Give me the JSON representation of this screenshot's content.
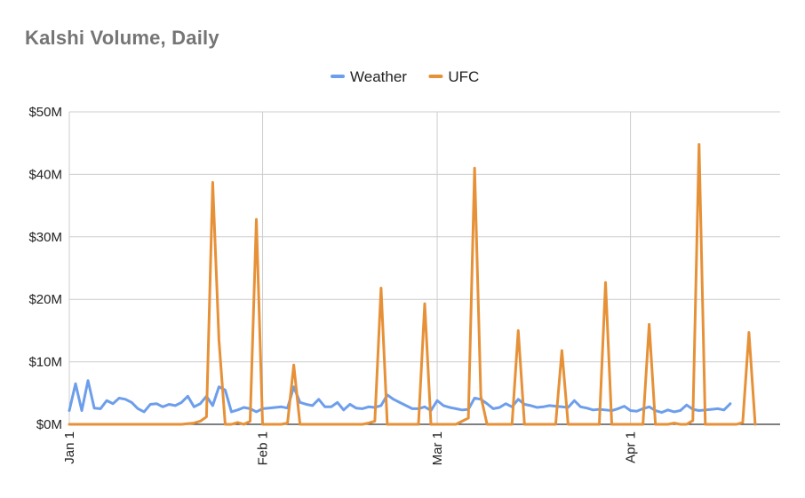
{
  "chart_data": {
    "type": "line",
    "title": "Kalshi Volume, Daily",
    "xlabel": "",
    "ylabel": "",
    "ylim": [
      0,
      50
    ],
    "y_ticks": [
      {
        "value": 0,
        "label": "$0M"
      },
      {
        "value": 10,
        "label": "$10M"
      },
      {
        "value": 20,
        "label": "$20M"
      },
      {
        "value": 30,
        "label": "$30M"
      },
      {
        "value": 40,
        "label": "$40M"
      },
      {
        "value": 50,
        "label": "$50M"
      }
    ],
    "x_range_days": [
      0,
      114
    ],
    "x_ticks": [
      {
        "day": 0,
        "label": "Jan 1"
      },
      {
        "day": 31,
        "label": "Feb 1"
      },
      {
        "day": 59,
        "label": "Mar 1"
      },
      {
        "day": 90,
        "label": "Apr 1"
      }
    ],
    "legend_position": "top-center",
    "series": [
      {
        "name": "Weather",
        "color": "#6d9eeb",
        "start_day": 0,
        "values": [
          2.2,
          6.5,
          2.2,
          7.0,
          2.6,
          2.5,
          3.8,
          3.3,
          4.2,
          4.0,
          3.5,
          2.5,
          2.0,
          3.2,
          3.3,
          2.8,
          3.2,
          3.0,
          3.5,
          4.5,
          2.8,
          3.3,
          4.5,
          3.0,
          6.0,
          5.5,
          2.0,
          2.3,
          2.7,
          2.5,
          2.0,
          2.5,
          2.6,
          2.7,
          2.8,
          2.6,
          6.0,
          3.5,
          3.2,
          3.0,
          4.0,
          2.8,
          2.8,
          3.5,
          2.3,
          3.2,
          2.6,
          2.5,
          2.8,
          2.7,
          3.0,
          4.7,
          4.0,
          3.5,
          3.0,
          2.5,
          2.5,
          2.8,
          2.2,
          3.8,
          3.0,
          2.7,
          2.5,
          2.3,
          2.4,
          4.2,
          4.0,
          3.3,
          2.5,
          2.7,
          3.3,
          2.8,
          4.0,
          3.2,
          3.0,
          2.7,
          2.8,
          3.0,
          2.9,
          2.8,
          2.7,
          3.8,
          2.8,
          2.6,
          2.3,
          2.4,
          2.3,
          2.2,
          2.5,
          2.9,
          2.2,
          2.1,
          2.5,
          2.8,
          2.2,
          1.9,
          2.3,
          2.0,
          2.2,
          3.1,
          2.4,
          2.2,
          2.3,
          2.4,
          2.5,
          2.3,
          3.3
        ]
      },
      {
        "name": "UFC",
        "color": "#e69138",
        "start_day": 0,
        "values": [
          0,
          0,
          0,
          0,
          0,
          0,
          0,
          0,
          0,
          0,
          0,
          0,
          0,
          0,
          0,
          0,
          0,
          0,
          0,
          0.1,
          0.2,
          0.5,
          1.2,
          38.7,
          13.5,
          0,
          0,
          0.3,
          0,
          0.5,
          32.8,
          0,
          0,
          0,
          0,
          0.2,
          9.5,
          0,
          0,
          0,
          0,
          0,
          0,
          0,
          0,
          0,
          0,
          0,
          0.2,
          0.5,
          21.8,
          0,
          0,
          0,
          0,
          0,
          0,
          19.3,
          0,
          0,
          0,
          0,
          0,
          0.5,
          1.0,
          41.0,
          4.5,
          0,
          0,
          0,
          0,
          0,
          15.0,
          0,
          0,
          0,
          0,
          0,
          0,
          11.8,
          0,
          0,
          0,
          0,
          0,
          0,
          22.7,
          0,
          0,
          0,
          0,
          0,
          0,
          16.0,
          0,
          0,
          0,
          0.2,
          0,
          0,
          0.6,
          44.8,
          0,
          0,
          0,
          0,
          0,
          0,
          0.3,
          14.7,
          0
        ]
      }
    ]
  }
}
